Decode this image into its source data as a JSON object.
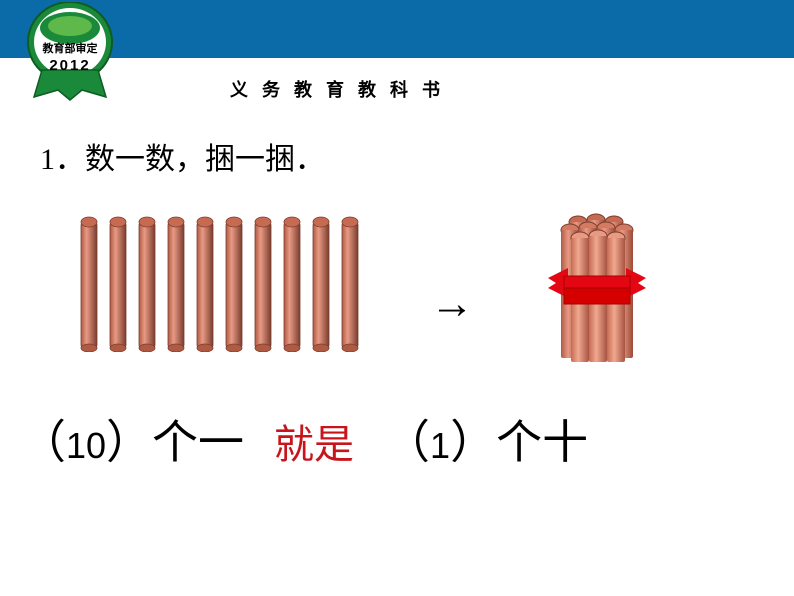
{
  "header": {
    "bar_color": "#0a6ba8",
    "badge": {
      "top_text": "教育部审定",
      "year": "2012",
      "outer_color": "#1a8a3a",
      "inner_color": "#ffffff",
      "ribbon_color": "#1a8a3a"
    },
    "subtitle": "义务教育教科书"
  },
  "question": {
    "number": "1．",
    "text": "数一数，捆一捆．"
  },
  "sticks": {
    "count": 10,
    "color_light": "#e89a84",
    "color_dark": "#b05a44",
    "cap_color": "#c76a52",
    "shadow": "#7a3d2e"
  },
  "bundle": {
    "ribbon_color": "#e30613",
    "tie_color": "#d40000"
  },
  "arrow": "→",
  "answer": {
    "left_paren": "（",
    "value1": "10",
    "right_paren": "）",
    "unit1": "个一",
    "connector": "就是",
    "value2": "1",
    "unit2": "个十"
  },
  "colors": {
    "text": "#000000",
    "red": "#c8151b",
    "background": "#ffffff"
  }
}
